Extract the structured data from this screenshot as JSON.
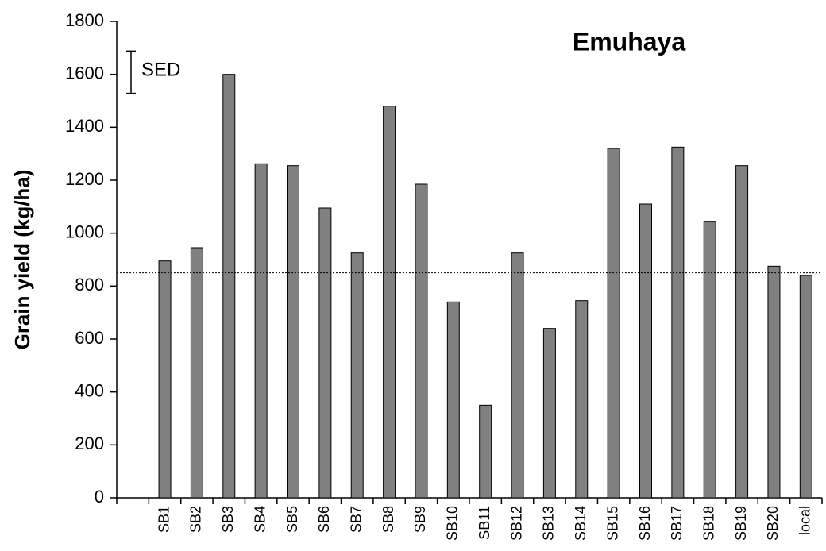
{
  "chart_data": {
    "type": "bar",
    "title": "Emuhaya",
    "ylabel": "Grain yield (kg/ha)",
    "categories": [
      null,
      "SB1",
      "SB2",
      "SB3",
      "SB4",
      "SB5",
      "SB6",
      "SB7",
      "SB8",
      "SB9",
      "SB10",
      "SB11",
      "SB12",
      "SB13",
      "SB14",
      "SB15",
      "SB16",
      "SB17",
      "SB18",
      "SB19",
      "SB20",
      "local"
    ],
    "values": [
      null,
      895,
      945,
      1600,
      1262,
      1255,
      1095,
      925,
      1480,
      1185,
      740,
      350,
      925,
      640,
      745,
      1320,
      1110,
      1325,
      1045,
      1255,
      875,
      840
    ],
    "color": "#808080",
    "ylim": [
      0,
      1800
    ],
    "yticks": [
      0,
      200,
      400,
      600,
      800,
      1000,
      1200,
      1400,
      1600,
      1800
    ],
    "grid": false,
    "reference_line": 850,
    "sed_label": "SED",
    "sed_value": 160
  }
}
